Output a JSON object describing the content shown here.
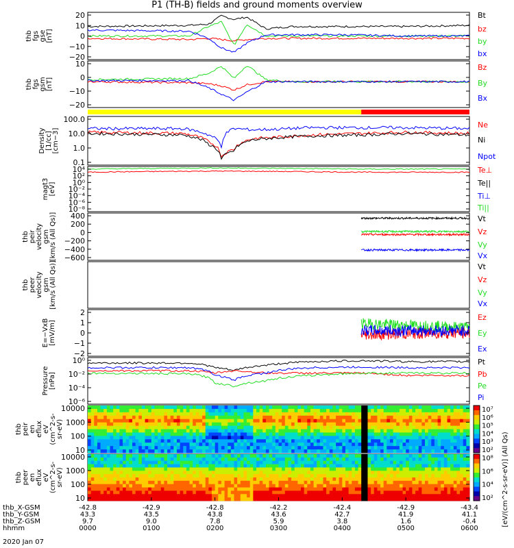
{
  "title": "P1 (TH-B) fields and ground moments overview",
  "colors": {
    "black": "#000000",
    "red": "#ff0000",
    "green": "#22dd22",
    "blue": "#0000ff",
    "yellow": "#ffff00",
    "cyan": "#00cccc"
  },
  "date_label": "2020 Jan 07",
  "ephemeris": {
    "labels": [
      "thb_X-GSM",
      "thb_Y-GSM",
      "thb_Z-GSM",
      "hhmm"
    ],
    "rows": [
      [
        "-42.8",
        "-42.9",
        "-42.8",
        "-42.2",
        "-42.4",
        "-42.9",
        "-43.4"
      ],
      [
        "43.3",
        "43.5",
        "43.8",
        "43.6",
        "42.7",
        "41.9",
        "41.1"
      ],
      [
        "9.7",
        "9.0",
        "7.8",
        "5.9",
        "3.8",
        "1.6",
        "-0.4"
      ],
      [
        "0000",
        "0100",
        "0200",
        "0300",
        "0400",
        "0500",
        "0600"
      ]
    ]
  },
  "chart_data": [
    {
      "type": "line",
      "panel": "fgs_gse",
      "ylabel": [
        "thb",
        "fgs",
        "gse",
        "[nT]"
      ],
      "ylim": [
        -20,
        20
      ],
      "ticks": [
        "20",
        "10",
        "0",
        "−10",
        "−20"
      ],
      "legend": [
        "Bt",
        "bz",
        "by",
        "bx"
      ],
      "series_x_hours": [
        0,
        1.6,
        1.9,
        2.1,
        2.3,
        2.5,
        2.8,
        3.2,
        4.0,
        5.0,
        6.0
      ],
      "series": [
        {
          "name": "Bt",
          "values": [
            8,
            9,
            10,
            17,
            14,
            16,
            6,
            8,
            8,
            8,
            9
          ]
        },
        {
          "name": "bz",
          "values": [
            -2,
            -3,
            -2,
            -3,
            -4,
            -3,
            -2,
            -2,
            -2,
            -2,
            -2
          ]
        },
        {
          "name": "by",
          "values": [
            0,
            0,
            8,
            12,
            -8,
            10,
            0,
            0,
            0,
            0,
            0
          ]
        },
        {
          "name": "bx",
          "values": [
            5,
            4,
            -2,
            -10,
            -14,
            -6,
            1,
            1,
            1,
            0,
            0
          ]
        }
      ]
    },
    {
      "type": "line",
      "panel": "fgs_gsm",
      "ylabel": [
        "thb",
        "fgs",
        "gsm",
        "[nT]"
      ],
      "ylim": [
        -25,
        20
      ],
      "ticks": [
        "10",
        "0",
        "−10",
        "−20"
      ],
      "legend": [
        "Bz",
        "By",
        "Bx"
      ],
      "series_x_hours": [
        0,
        1.6,
        1.9,
        2.1,
        2.3,
        2.5,
        2.8,
        3.2,
        4.0,
        5.0,
        6.0
      ],
      "series": [
        {
          "name": "Bz",
          "values": [
            0,
            -1,
            -2,
            -4,
            -8,
            -3,
            0,
            0,
            0,
            0,
            0
          ]
        },
        {
          "name": "By",
          "values": [
            2,
            3,
            8,
            15,
            3,
            16,
            2,
            0,
            0,
            0,
            0
          ]
        },
        {
          "name": "Bx",
          "values": [
            1,
            1,
            -6,
            -12,
            -18,
            -10,
            0,
            0,
            0,
            0,
            0
          ]
        }
      ]
    },
    {
      "type": "bar",
      "panel": "mode_bar",
      "segments": [
        {
          "from_hour": 0,
          "to_hour": 4.3,
          "color": "yellow"
        },
        {
          "from_hour": 4.3,
          "to_hour": 6,
          "color": "red"
        }
      ]
    },
    {
      "type": "line",
      "panel": "density",
      "scale": "log",
      "ylabel": [
        "Density",
        "[1/cc]",
        "[cm−3]"
      ],
      "ylim": [
        0.01,
        100
      ],
      "ticks": [
        "100.0",
        "10.0",
        "1.0",
        "0.1"
      ],
      "legend": [
        "Ne",
        "Ni",
        "Npot"
      ],
      "series_x_hours": [
        0,
        1.5,
        1.9,
        2.1,
        2.3,
        2.6,
        3.0,
        3.5,
        4.3,
        5.0,
        6.0
      ],
      "series": [
        {
          "name": "Ne",
          "values": [
            5,
            4,
            0.8,
            0.05,
            0.2,
            1.5,
            2,
            3,
            4,
            5,
            4
          ]
        },
        {
          "name": "Ni",
          "values": [
            4,
            3,
            0.5,
            0.03,
            0.15,
            1.2,
            1.8,
            2.5,
            3,
            4,
            3
          ]
        },
        {
          "name": "Npot",
          "values": [
            10,
            10,
            3,
            0.3,
            10,
            8,
            9,
            12,
            12,
            12,
            10
          ]
        }
      ]
    },
    {
      "type": "line",
      "panel": "magt3",
      "scale": "log",
      "ylabel": [
        "magt3",
        "[eV]"
      ],
      "ylim": [
        1e-08,
        10000
      ],
      "ticks": [
        "10⁴",
        "10²",
        "10⁰",
        "10⁻²",
        "10⁻⁴",
        "10⁻⁶",
        "10⁻⁸"
      ],
      "legend": [
        "Te⊥",
        "Te||",
        "Ti⊥",
        "Ti||"
      ],
      "series_x_hours": [
        0,
        2.0,
        4.3,
        6.0
      ],
      "series": [
        {
          "name": "Te⊥",
          "values": [
            300,
            600,
            300,
            300
          ]
        },
        {
          "name": "Ti||",
          "values": [
            2000,
            4000,
            2000,
            2000
          ]
        }
      ]
    },
    {
      "type": "line",
      "panel": "peir_velocity",
      "ylabel": [
        "thb",
        "peir",
        "velocity",
        "gsm",
        "[km/s (All Qs)]"
      ],
      "ylim": [
        -600,
        500
      ],
      "ticks": [
        "400",
        "200",
        "0",
        "−200",
        "−400",
        "−600"
      ],
      "legend": [
        "Vt",
        "Vz",
        "Vy",
        "Vx"
      ],
      "series_x_hours": [
        4.3,
        6.0
      ],
      "series": [
        {
          "name": "Vt",
          "values": [
            380,
            380
          ]
        },
        {
          "name": "Vz",
          "values": [
            0,
            0
          ]
        },
        {
          "name": "Vy",
          "values": [
            70,
            70
          ]
        },
        {
          "name": "Vx",
          "values": [
            -360,
            -360
          ]
        }
      ]
    },
    {
      "type": "line",
      "panel": "peer_velocity",
      "ylabel": [
        "thb",
        "peer",
        "velocity",
        "gsm",
        "[km/s (All Qs)]"
      ],
      "legend": [
        "Vt",
        "Vz",
        "Vy",
        "Vx"
      ],
      "series": []
    },
    {
      "type": "line",
      "panel": "efield",
      "ylabel": [
        "E=−VxB",
        "[mV/m]"
      ],
      "ylim": [
        -3,
        3
      ],
      "ticks": [
        "2",
        "1",
        "0",
        "−1",
        "−2"
      ],
      "legend": [
        "Ez",
        "Ey",
        "Ex"
      ],
      "series_x_hours": [
        4.3,
        6.0
      ],
      "series": [
        {
          "name": "Ey",
          "values": [
            1.2,
            0.7
          ]
        },
        {
          "name": "Ez",
          "values": [
            -0.2,
            0
          ]
        },
        {
          "name": "Ex",
          "values": [
            0.3,
            0.3
          ]
        }
      ]
    },
    {
      "type": "line",
      "panel": "pressure",
      "scale": "log",
      "ylabel": [
        "Pressure",
        "[nPa]"
      ],
      "ylim": [
        1e-06,
        1
      ],
      "ticks": [
        "10⁰",
        "10⁻²",
        "10⁻⁴",
        "10⁻⁶"
      ],
      "legend": [
        "Pt",
        "Pb",
        "Pe",
        "Pi"
      ],
      "series_x_hours": [
        0,
        1.6,
        2.0,
        2.3,
        2.8,
        3.5,
        4.3,
        5.0,
        6.0
      ],
      "series": [
        {
          "name": "Pt",
          "values": [
            0.2,
            0.2,
            0.05,
            0.02,
            0.1,
            0.3,
            0.4,
            0.3,
            0.3
          ]
        },
        {
          "name": "Pb",
          "values": [
            0.02,
            0.02,
            0.01,
            0.02,
            0.01,
            0.01,
            0.01,
            0.005,
            0.005
          ]
        },
        {
          "name": "Pe",
          "values": [
            0.01,
            0.008,
            0.0005,
            0.0002,
            0.001,
            0.005,
            0.01,
            0.01,
            0.01
          ]
        },
        {
          "name": "Pi",
          "values": [
            0.05,
            0.05,
            0.005,
            0.001,
            0.01,
            0.05,
            0.06,
            0.05,
            0.05
          ]
        }
      ]
    },
    {
      "type": "heatmap",
      "panel": "peir_spectrogram",
      "scale": "log",
      "ylabel": [
        "thb",
        "peir",
        "en",
        "eflux",
        "eV",
        "(cm^2-s-",
        "sr-eV)"
      ],
      "ticks": [
        "10000",
        "1000",
        "100",
        "10"
      ],
      "colorbar_ticks": [
        "10⁷",
        "10⁶",
        "10⁵",
        "10⁴",
        "10³",
        "10²"
      ]
    },
    {
      "type": "heatmap",
      "panel": "peer_spectrogram",
      "scale": "log",
      "ylabel": [
        "thb",
        "peer",
        "en",
        "eflux",
        "eV",
        "(cm^2-s-",
        "sr-eV)"
      ],
      "ticks": [
        "10000",
        "1000",
        "100",
        "10"
      ],
      "colorbar_ticks": [
        "10⁸",
        "10⁶",
        "10⁴",
        "10²"
      ]
    }
  ],
  "colorbar_label": "[eV/(cm^2-s-sr-eV)] (All Qs)"
}
